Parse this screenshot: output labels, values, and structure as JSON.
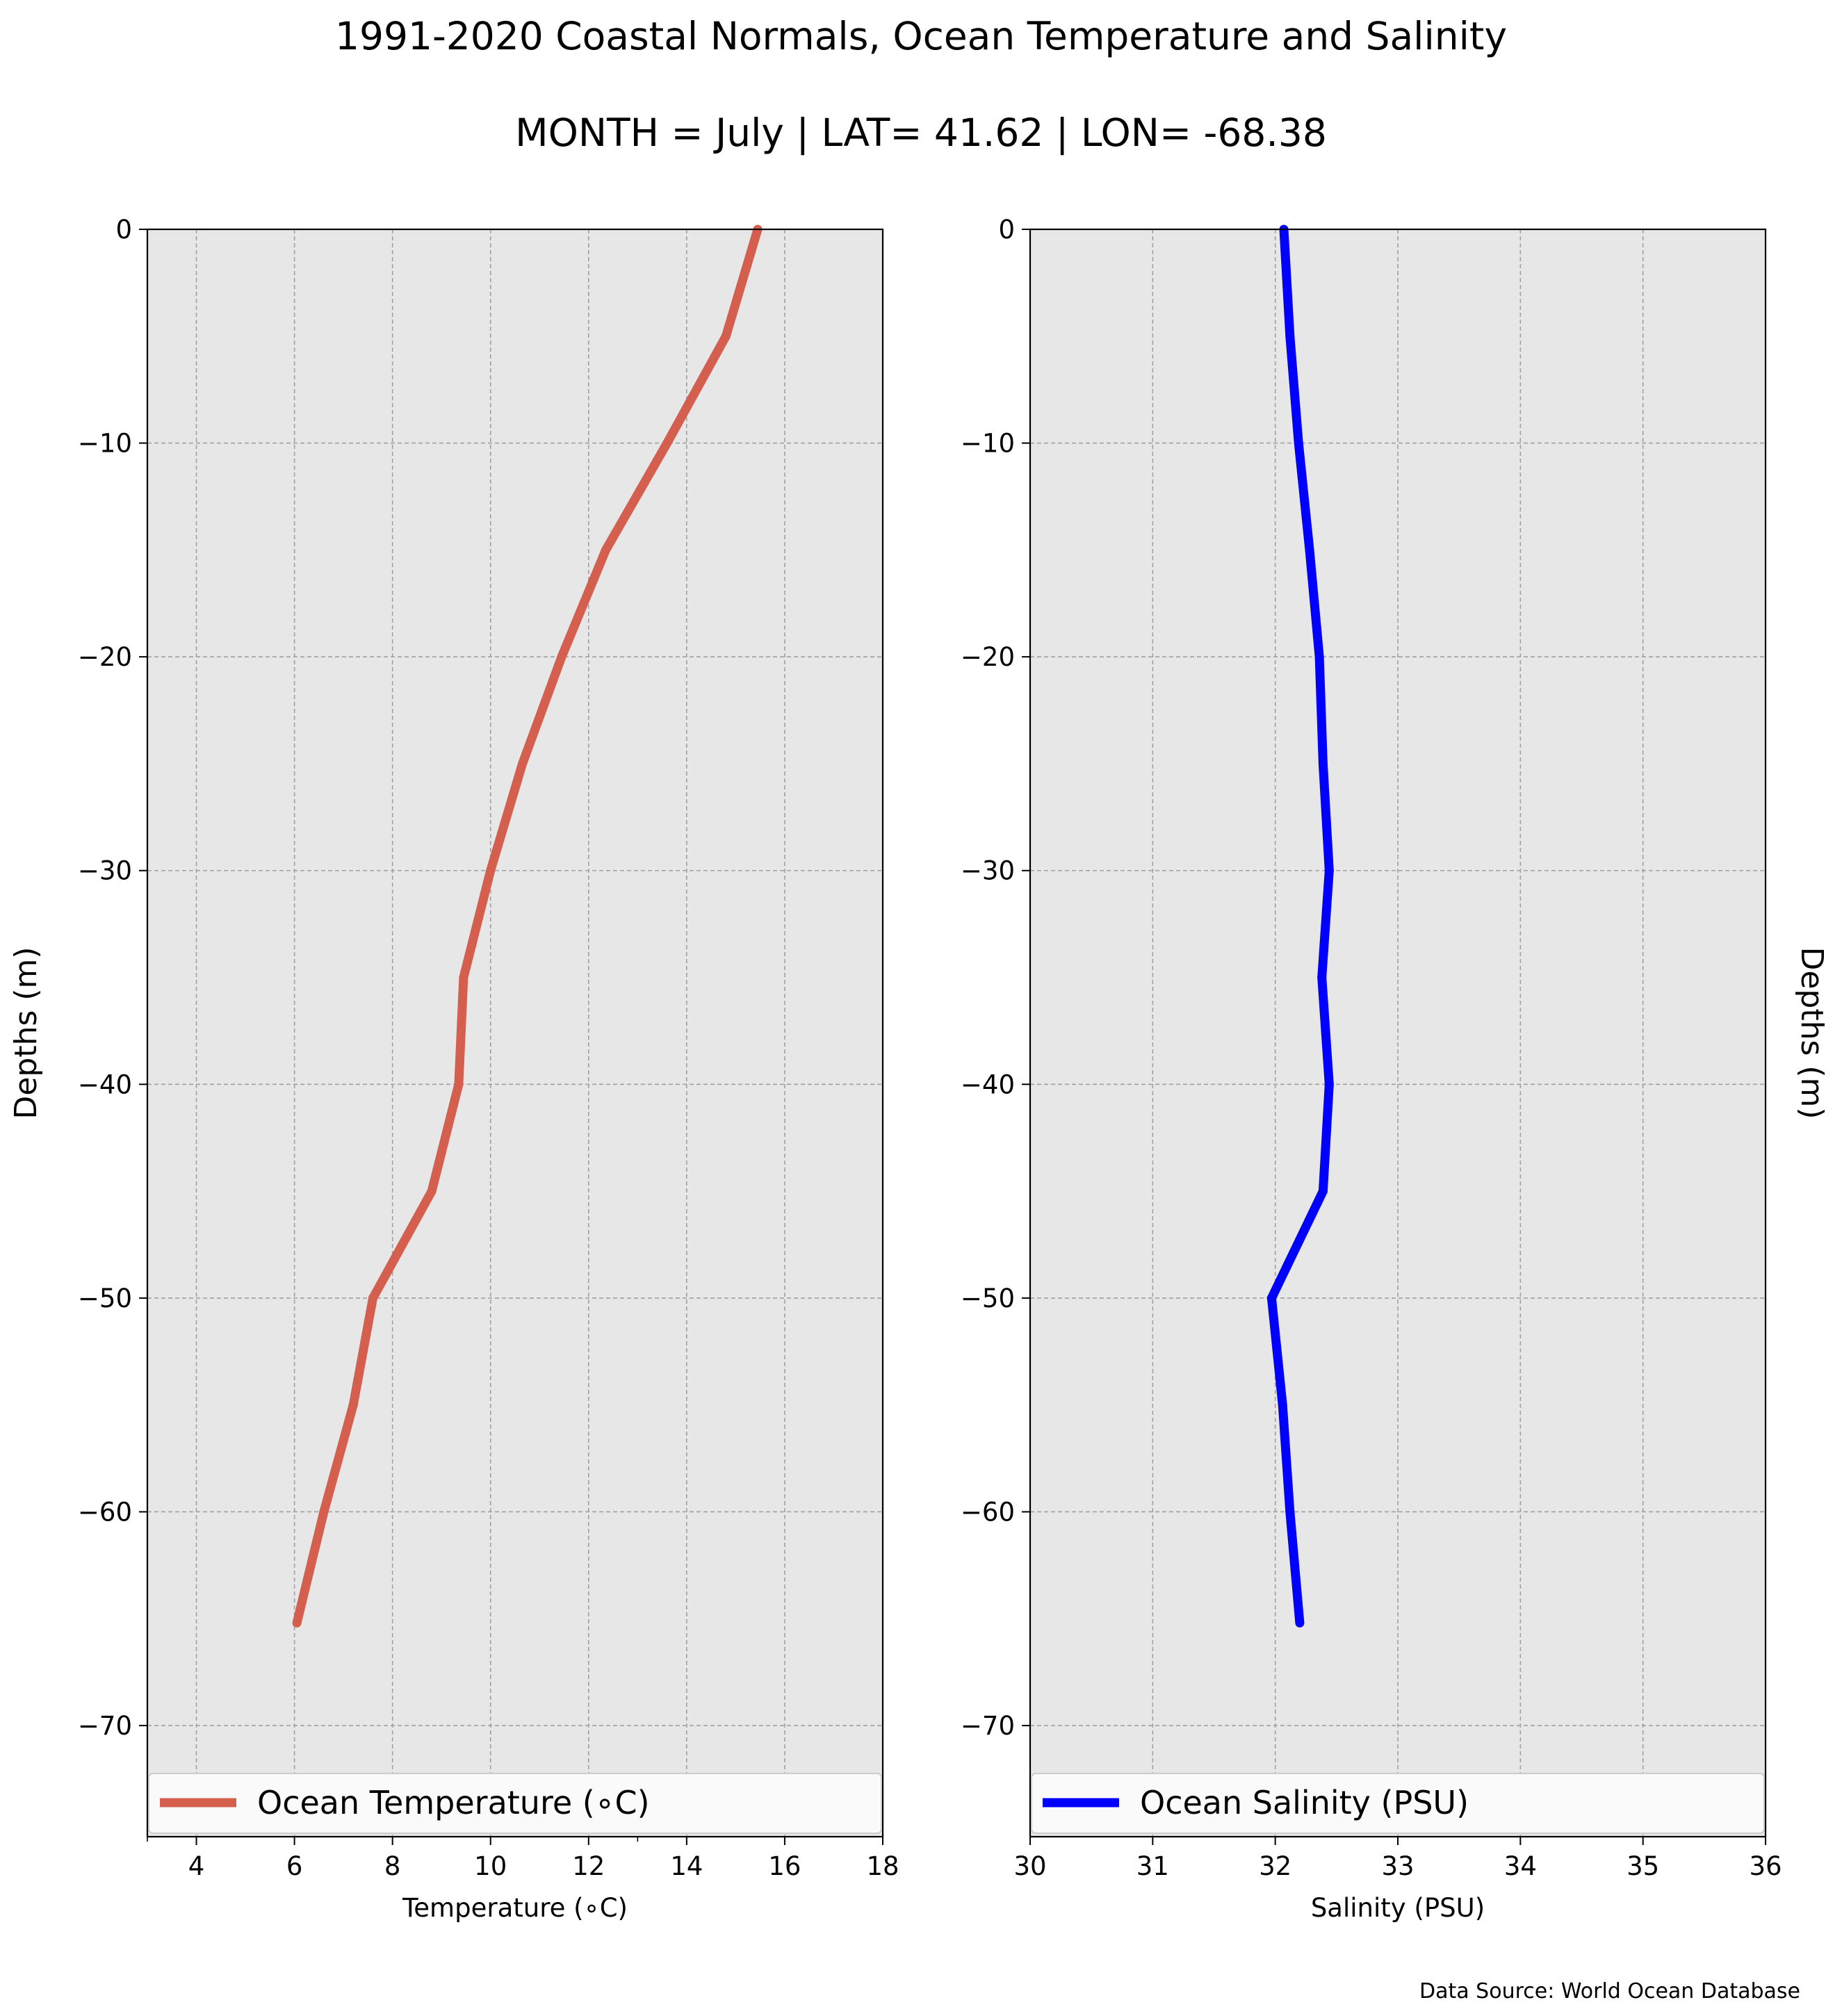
{
  "title": "1991-2020 Coastal Normals, Ocean Temperature and Salinity",
  "subtitle": "MONTH = July | LAT= 41.62 | LON= -68.38",
  "source_note": "Data Source: World Ocean Database",
  "colors": {
    "temperature": "#d45f4e",
    "salinity": "#0000ff",
    "plot_background": "#e7e7e7",
    "grid": "#a0a0a0"
  },
  "chart_data": [
    {
      "type": "line",
      "xlabel": "Temperature ($^\\circ$C)",
      "xlabel_display": "Temperature (∘C)",
      "ylabel": "Depths (m)",
      "xlim": [
        3.0,
        18.0
      ],
      "ylim": [
        -75.2,
        0
      ],
      "xticks": [
        "4",
        "6",
        "8",
        "10",
        "12",
        "14",
        "16",
        "18"
      ],
      "yticks": [
        "0",
        "−10",
        "−20",
        "−30",
        "−40",
        "−50",
        "−60",
        "−70"
      ],
      "grid": true,
      "legend_position": "bottom",
      "series": [
        {
          "name": "Ocean Temperature (∘C)",
          "color": "#d45f4e",
          "x": [
            15.45,
            14.8,
            13.6,
            12.35,
            11.45,
            10.65,
            10.0,
            9.45,
            9.35,
            8.8,
            7.6,
            7.2,
            6.6,
            6.05
          ],
          "y": [
            0,
            -5,
            -10,
            -15,
            -20,
            -25,
            -30,
            -35,
            -40,
            -45,
            -50,
            -55,
            -60,
            -65.2
          ]
        }
      ]
    },
    {
      "type": "line",
      "xlabel": "Salinity (PSU)",
      "ylabel": "Depths (m)",
      "xlim": [
        30,
        36
      ],
      "ylim": [
        -75.2,
        0
      ],
      "xticks": [
        "30",
        "31",
        "32",
        "33",
        "34",
        "35",
        "36"
      ],
      "yticks": [
        "0",
        "−10",
        "−20",
        "−30",
        "−40",
        "−50",
        "−60",
        "−70"
      ],
      "grid": true,
      "legend_position": "bottom",
      "series": [
        {
          "name": "Ocean Salinity (PSU)",
          "color": "#0000ff",
          "x": [
            32.07,
            32.12,
            32.19,
            32.28,
            32.36,
            32.39,
            32.44,
            32.38,
            32.44,
            32.39,
            31.97,
            32.06,
            32.12,
            32.2
          ],
          "y": [
            0,
            -5,
            -10,
            -15,
            -20,
            -25,
            -30,
            -35,
            -40,
            -45,
            -50,
            -55,
            -60,
            -65.2
          ]
        }
      ]
    }
  ]
}
